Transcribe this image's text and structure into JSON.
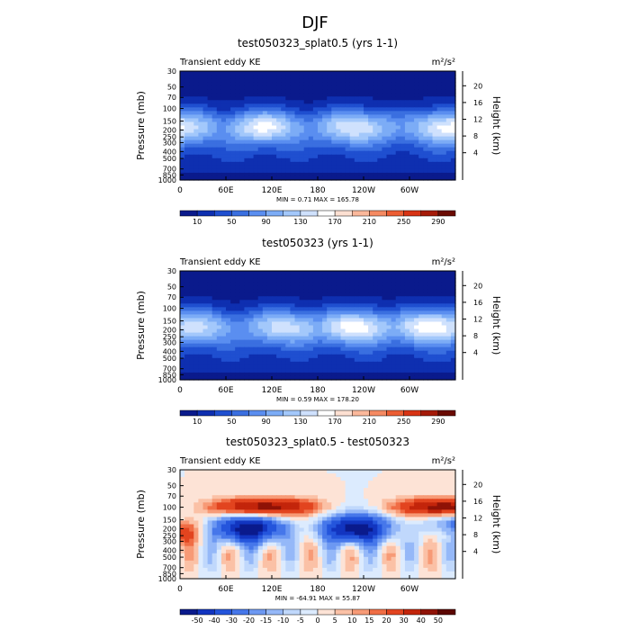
{
  "page": {
    "title": "DJF"
  },
  "chart_data": [
    {
      "type": "heatmap",
      "title": "test050323_splat0.5 (yrs 1-1)",
      "left_string": "Transient eddy KE",
      "units": "m²/s²",
      "ylabel": "Pressure (mb)",
      "right_label": "Height (km)",
      "x_ticks": [
        "0",
        "60E",
        "120E",
        "180",
        "120W",
        "60W"
      ],
      "y_ticks": [
        "30",
        "50",
        "70",
        "100",
        "150",
        "200",
        "250",
        "300",
        "400",
        "500",
        "700",
        "850",
        "1000"
      ],
      "height_ticks": [
        "20",
        "16",
        "12",
        "8",
        "4"
      ],
      "stats": "MIN =   0.71   MAX = 165.78",
      "min": 0.71,
      "max": 165.78,
      "colorbar_levels": [
        10,
        30,
        50,
        70,
        90,
        110,
        130,
        150,
        170,
        190,
        210,
        230,
        250,
        270,
        290
      ],
      "colorbar_labels": [
        "10",
        "50",
        "90",
        "130",
        "170",
        "210",
        "250",
        "290"
      ],
      "jet": {
        "peak_lon_deg": [
          0,
          110,
          230,
          350
        ],
        "peak_strength": [
          0.7,
          0.8,
          0.75,
          0.85
        ],
        "core_pressure_mb": 180
      }
    },
    {
      "type": "heatmap",
      "title": "test050323 (yrs 1-1)",
      "left_string": "Transient eddy KE",
      "units": "m²/s²",
      "ylabel": "Pressure (mb)",
      "right_label": "Height (km)",
      "x_ticks": [
        "0",
        "60E",
        "120E",
        "180",
        "120W",
        "60W"
      ],
      "y_ticks": [
        "30",
        "50",
        "70",
        "100",
        "150",
        "200",
        "250",
        "300",
        "400",
        "500",
        "700",
        "850",
        "1000"
      ],
      "height_ticks": [
        "20",
        "16",
        "12",
        "8",
        "4"
      ],
      "stats": "MIN =   0.59   MAX = 178.20",
      "min": 0.59,
      "max": 178.2,
      "colorbar_levels": [
        10,
        30,
        50,
        70,
        90,
        110,
        130,
        150,
        170,
        190,
        210,
        230,
        250,
        270,
        290
      ],
      "colorbar_labels": [
        "10",
        "50",
        "90",
        "130",
        "170",
        "210",
        "250",
        "290"
      ],
      "jet": {
        "peak_lon_deg": [
          20,
          140,
          230,
          330
        ],
        "peak_strength": [
          0.55,
          0.6,
          0.8,
          0.85
        ],
        "core_pressure_mb": 180
      }
    },
    {
      "type": "heatmap",
      "title": "test050323_splat0.5 - test050323",
      "left_string": "Transient eddy KE",
      "units": "m²/s²",
      "ylabel": "Pressure (mb)",
      "right_label": "Height (km)",
      "x_ticks": [
        "0",
        "60E",
        "120E",
        "180",
        "120W",
        "60W"
      ],
      "y_ticks": [
        "30",
        "50",
        "70",
        "100",
        "150",
        "200",
        "250",
        "300",
        "400",
        "500",
        "700",
        "850",
        "1000"
      ],
      "height_ticks": [
        "20",
        "16",
        "12",
        "8",
        "4"
      ],
      "stats": "MIN = -64.91   MAX =  55.87",
      "min": -64.91,
      "max": 55.87,
      "colorbar_levels": [
        -50,
        -40,
        -30,
        -20,
        -15,
        -10,
        -5,
        0,
        5,
        10,
        15,
        20,
        30,
        40,
        50
      ],
      "colorbar_labels": [
        "-50",
        "-40",
        "-30",
        "-20",
        "-15",
        "-10",
        "-5",
        "0",
        "5",
        "10",
        "15",
        "20",
        "30",
        "40",
        "50"
      ],
      "diff": {
        "positive_band_pressure_mb": 100,
        "negative_band_pressure_mb": 200
      }
    }
  ],
  "colors": {
    "ke_palette": [
      "#0a1a8c",
      "#0e2fb0",
      "#1f4fd0",
      "#3a6fe0",
      "#5a8ef0",
      "#7cacf6",
      "#a3c8fb",
      "#cfe1fd",
      "#ffffff",
      "#fde0d2",
      "#fbb89b",
      "#f58a62",
      "#ec5d33",
      "#d83314",
      "#a51a08",
      "#6a0b02"
    ],
    "diff_palette": [
      "#0a1a8c",
      "#1235c0",
      "#2455dc",
      "#4677ea",
      "#6c98f2",
      "#95b8f8",
      "#c0d8fc",
      "#dcebfe",
      "#fde3d6",
      "#fbc1a6",
      "#f79a76",
      "#f06d45",
      "#e2441f",
      "#c3250b",
      "#8f1206",
      "#5c0702"
    ]
  }
}
